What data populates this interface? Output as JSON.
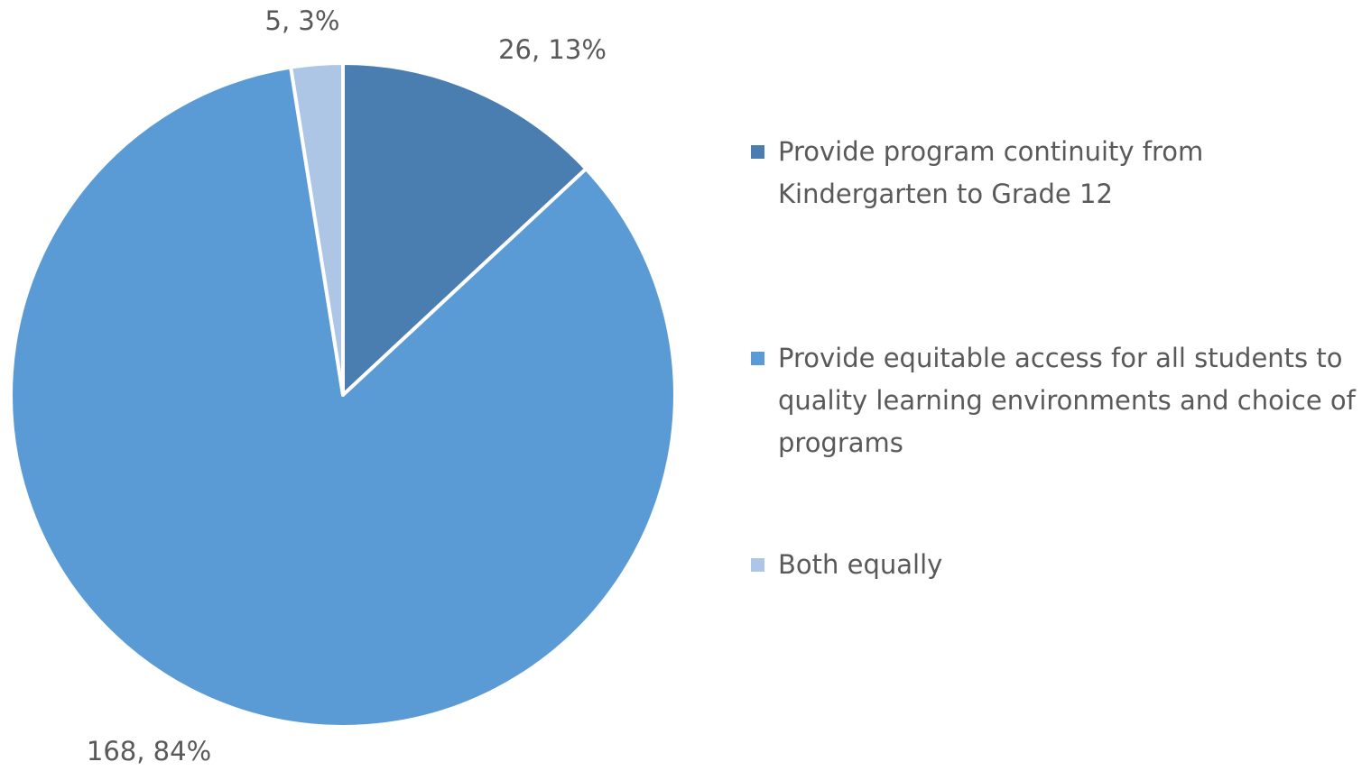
{
  "chart_data": {
    "type": "pie",
    "categories": [
      "Provide program continuity from Kindergarten to Grade 12",
      "Provide equitable access for all students to quality learning environments and choice of programs",
      "Both equally"
    ],
    "values": [
      26,
      168,
      5
    ],
    "value_labels": [
      "26, 13%",
      "168, 84%",
      "5, 3%"
    ],
    "colors": [
      "#4a7eb1",
      "#5b9bd5",
      "#adc6e6"
    ],
    "legend": "right"
  }
}
